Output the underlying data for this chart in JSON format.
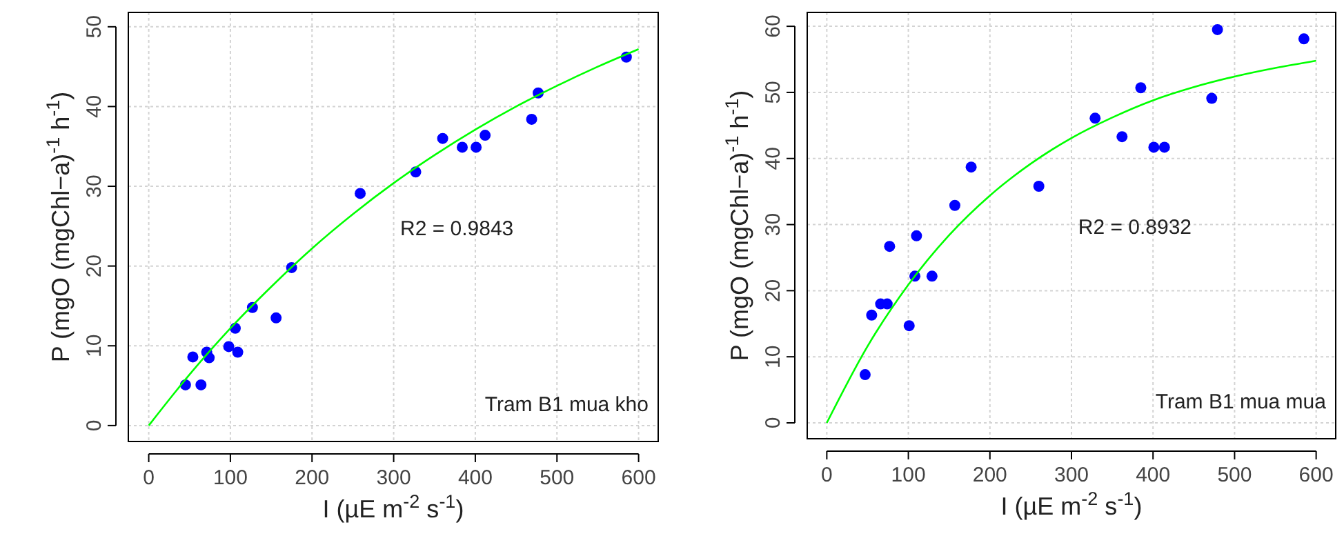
{
  "chart_data": [
    {
      "type": "scatter",
      "xlabel": "I (µE m$^{-2}$ s$^{-1}$)",
      "ylabel": "P (mgO (mgChl−a)$^{-1}$ h$^{-1}$)",
      "xlim": [
        -25,
        624
      ],
      "ylim": [
        -2,
        51.8
      ],
      "xticks": [
        0,
        100,
        200,
        300,
        400,
        500,
        600
      ],
      "yticks": [
        0,
        10,
        20,
        30,
        40,
        50
      ],
      "grid": true,
      "marker": "circle",
      "annotations": [
        "R2 = 0.9843",
        "Tram B1 mua kho"
      ],
      "series": [
        {
          "color": "#0000ff",
          "x": [
            45,
            54,
            64,
            71,
            74,
            98,
            106,
            109,
            127,
            156,
            175,
            259,
            327,
            360,
            384,
            401,
            412,
            469,
            477,
            585
          ],
          "values": [
            5.1,
            8.6,
            5.1,
            9.2,
            8.5,
            9.9,
            12.2,
            9.2,
            14.8,
            13.5,
            19.8,
            29.1,
            31.8,
            36.0,
            34.9,
            34.9,
            36.4,
            38.4,
            41.7,
            46.2
          ]
        },
        {
          "type": "line",
          "color": "#00ff00",
          "marker": "none",
          "x": [
            0,
            50,
            100,
            150,
            200,
            250,
            300,
            350,
            400,
            450,
            500,
            550,
            600
          ],
          "values": [
            0,
            6.4,
            12.2,
            17.4,
            22.2,
            26.5,
            30.4,
            33.9,
            37.1,
            40.0,
            42.6,
            45.0,
            47.2
          ]
        }
      ]
    },
    {
      "type": "scatter",
      "xlabel": "I (µE m$^{-2}$ s$^{-1}$)",
      "ylabel": "P (mgO (mgChl−a)$^{-1}$ h$^{-1}$)",
      "xlim": [
        -24,
        624
      ],
      "ylim": [
        -2.4,
        62.1
      ],
      "xticks": [
        0,
        100,
        200,
        300,
        400,
        500,
        600
      ],
      "yticks": [
        0,
        10,
        20,
        30,
        40,
        50,
        60
      ],
      "grid": true,
      "marker": "circle",
      "annotations": [
        "R2 = 0.8932",
        "Tram B1 mua mua"
      ],
      "series": [
        {
          "color": "#0000ff",
          "x": [
            47,
            55,
            66,
            74,
            77,
            101,
            108,
            110,
            129,
            157,
            177,
            260,
            329,
            362,
            385,
            401,
            414,
            472,
            479,
            585
          ],
          "values": [
            7.3,
            16.3,
            18.0,
            18.0,
            26.7,
            14.7,
            22.2,
            28.3,
            22.2,
            32.9,
            38.7,
            35.8,
            46.1,
            43.3,
            50.7,
            41.7,
            41.7,
            49.1,
            59.5,
            58.1
          ]
        },
        {
          "type": "line",
          "color": "#00ff00",
          "marker": "none",
          "x": [
            0,
            50,
            100,
            150,
            200,
            250,
            300,
            350,
            400,
            450,
            500,
            550,
            600
          ],
          "values": [
            0,
            11.6,
            20.9,
            28.4,
            34.4,
            39.2,
            43.1,
            46.2,
            48.8,
            50.8,
            52.4,
            53.7,
            54.8
          ]
        }
      ]
    }
  ]
}
